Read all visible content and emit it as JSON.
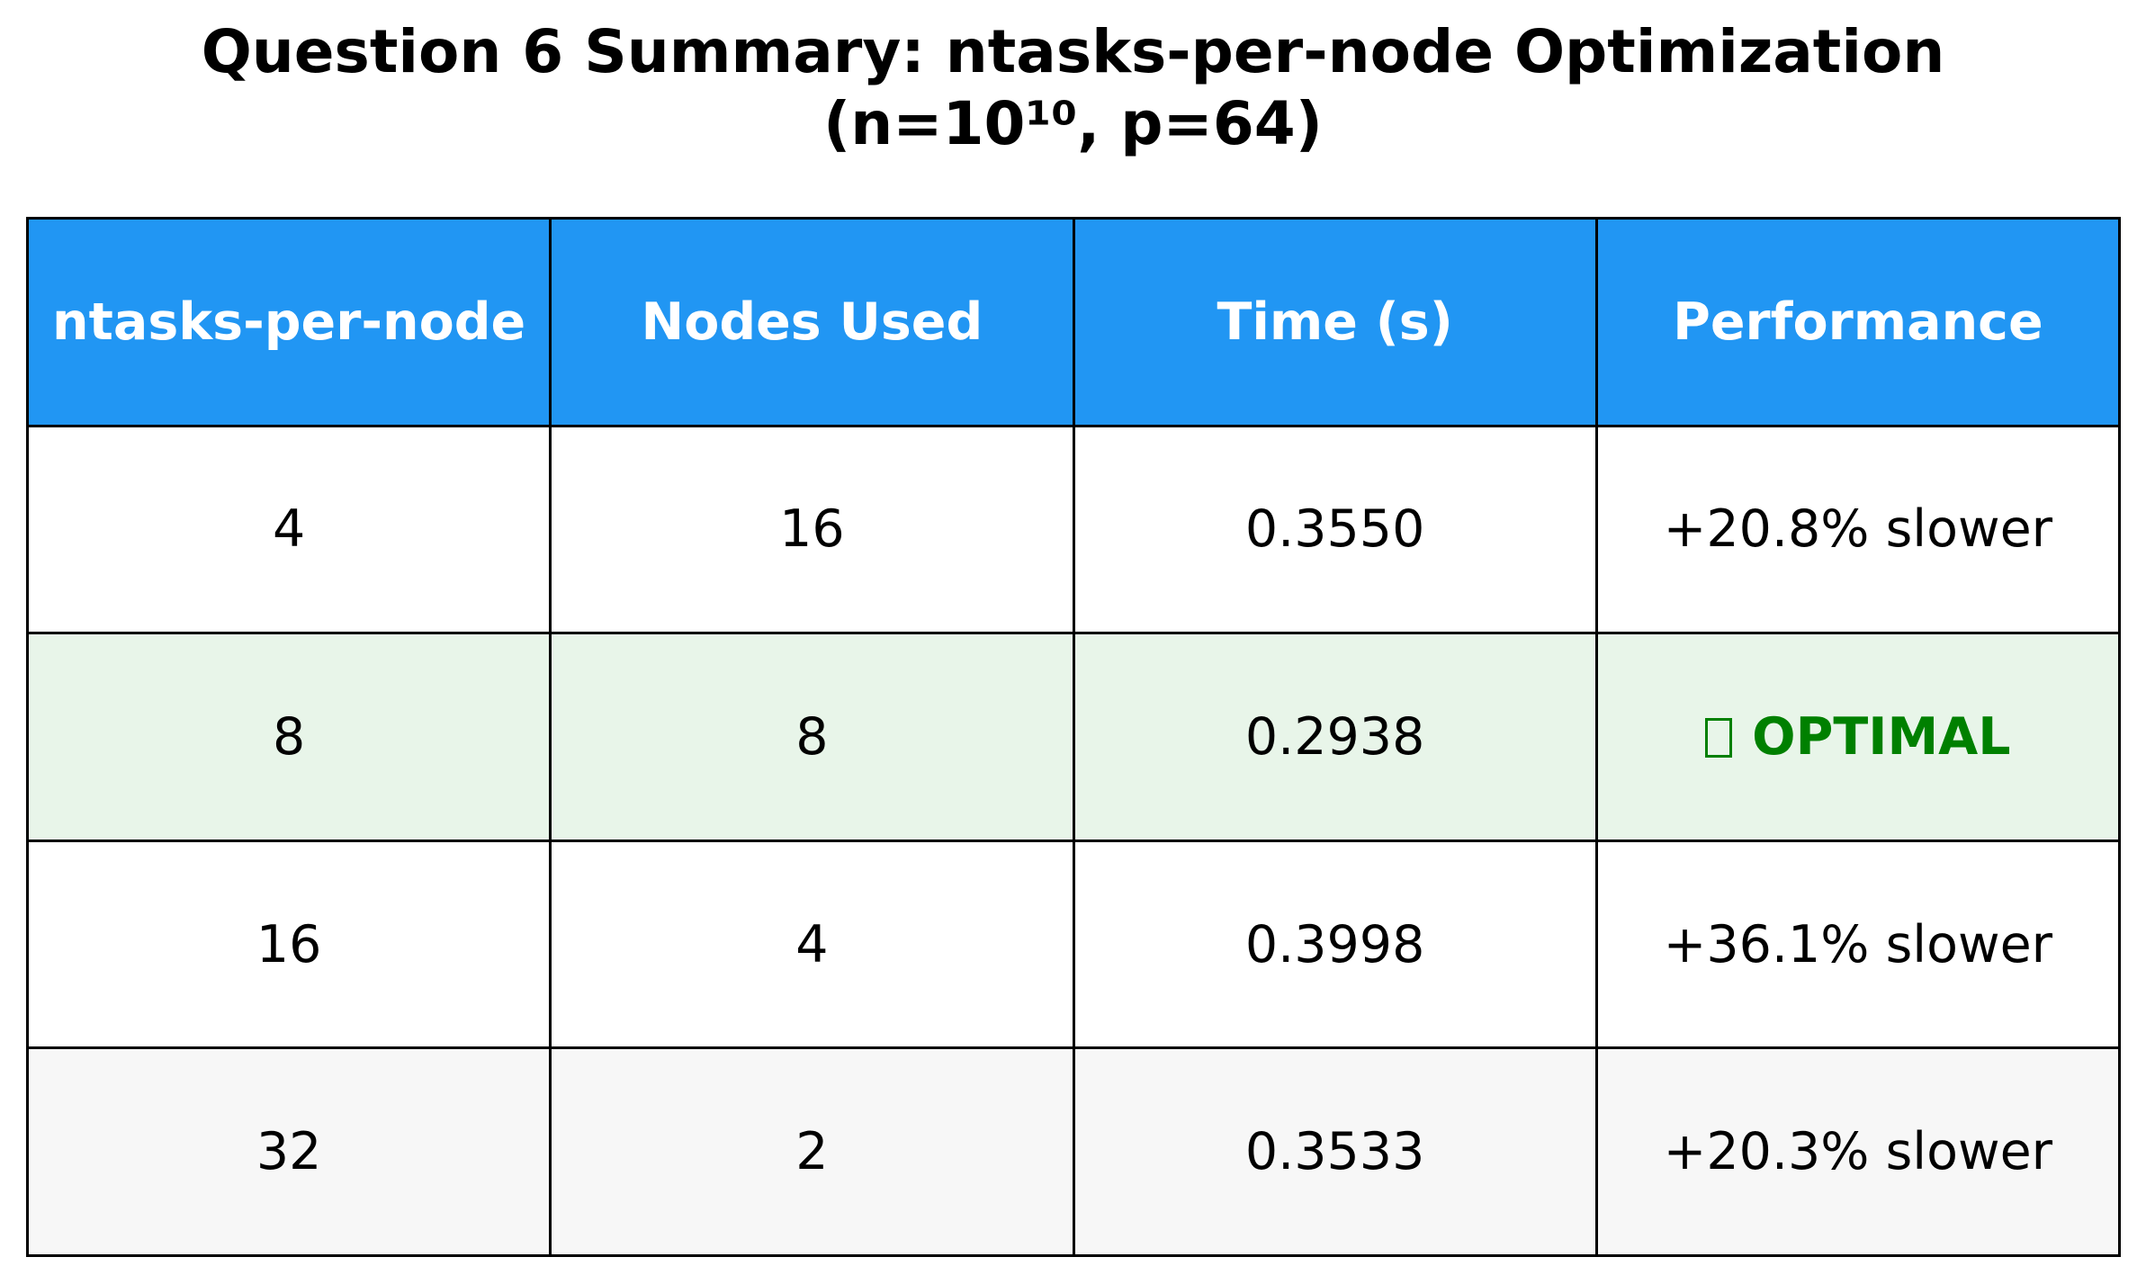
{
  "title_line1": "Question 6 Summary: ntasks-per-node Optimization",
  "title_line2": "(n=10¹⁰, p=64)",
  "colors": {
    "header_bg": "#2196F3",
    "header_text": "#ffffff",
    "row_white": "#ffffff",
    "row_optimal": "#E8F5E9",
    "row_alt": "#F7F7F7",
    "optimal_text": "#008000"
  },
  "chart_data": {
    "type": "table",
    "columns": [
      "ntasks-per-node",
      "Nodes Used",
      "Time (s)",
      "Performance"
    ],
    "rows": [
      {
        "ntasks": "4",
        "nodes": "16",
        "time": "0.3550",
        "performance": "+20.8% slower",
        "optimal": false,
        "bg": "#ffffff"
      },
      {
        "ntasks": "8",
        "nodes": "8",
        "time": "0.2938",
        "performance": "OPTIMAL",
        "performance_icon": "check-icon",
        "optimal": true,
        "bg": "#E8F5E9"
      },
      {
        "ntasks": "16",
        "nodes": "4",
        "time": "0.3998",
        "performance": "+36.1% slower",
        "optimal": false,
        "bg": "#ffffff"
      },
      {
        "ntasks": "32",
        "nodes": "2",
        "time": "0.3533",
        "performance": "+20.3% slower",
        "optimal": false,
        "bg": "#F7F7F7"
      }
    ]
  }
}
